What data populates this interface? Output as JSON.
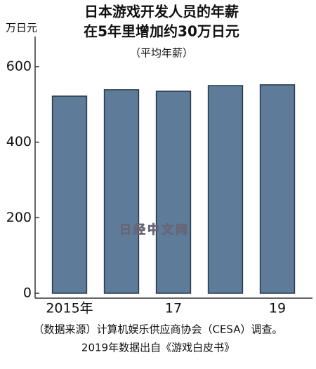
{
  "chart_data": {
    "type": "bar",
    "title": "日本游戏开发人员的年薪",
    "subtitle": "在5年里增加约30万日元",
    "note": "（平均年薪）",
    "y_label": "万日元",
    "categories": [
      "2015年",
      null,
      "17",
      null,
      "19"
    ],
    "values": [
      522,
      539,
      535,
      550,
      552
    ],
    "color": "#5e7c9a",
    "ylim": [
      -13,
      680
    ],
    "yticks": [
      0,
      200,
      400,
      600
    ],
    "grid": false,
    "watermark": "日经中文网",
    "source": [
      "（数据来源）计算机娱乐供应商协会（CESA）调查。",
      "2019年数据出自《游戏白皮书》"
    ]
  }
}
